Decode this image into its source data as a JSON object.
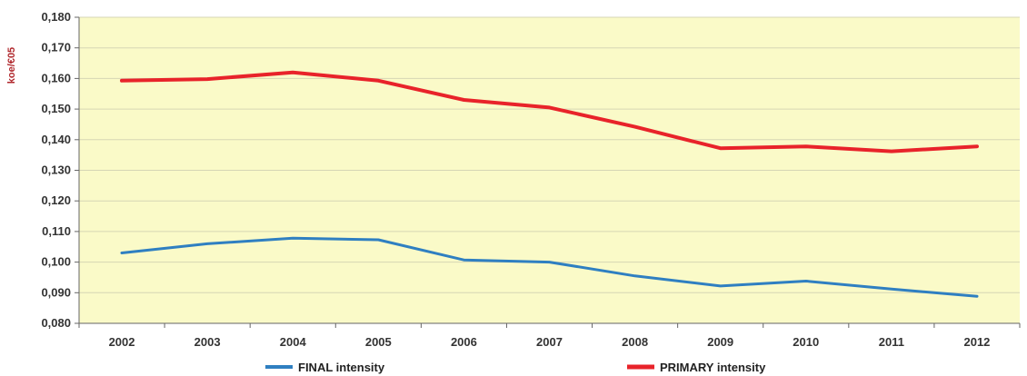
{
  "chart_data": {
    "type": "line",
    "title": "",
    "xlabel": "",
    "ylabel": "koe/€05",
    "categories": [
      "2002",
      "2003",
      "2004",
      "2005",
      "2006",
      "2007",
      "2008",
      "2009",
      "2010",
      "2011",
      "2012"
    ],
    "ylim": [
      0.08,
      0.18
    ],
    "yticks": [
      "0,080",
      "0,090",
      "0,100",
      "0,110",
      "0,120",
      "0,130",
      "0,140",
      "0,150",
      "0,160",
      "0,170",
      "0,180"
    ],
    "grid": true,
    "legend_position": "bottom",
    "plot_background": "#fafac8",
    "series": [
      {
        "name": "FINAL intensity",
        "color": "#2f7fc1",
        "values": [
          0.103,
          0.106,
          0.1078,
          0.1073,
          0.1007,
          0.1,
          0.0955,
          0.0922,
          0.0938,
          0.0912,
          0.0888
        ]
      },
      {
        "name": "PRIMARY intensity",
        "color": "#e8232a",
        "values": [
          0.1593,
          0.1598,
          0.162,
          0.1593,
          0.153,
          0.1505,
          0.1442,
          0.1372,
          0.1378,
          0.1362,
          0.1378
        ]
      }
    ]
  }
}
